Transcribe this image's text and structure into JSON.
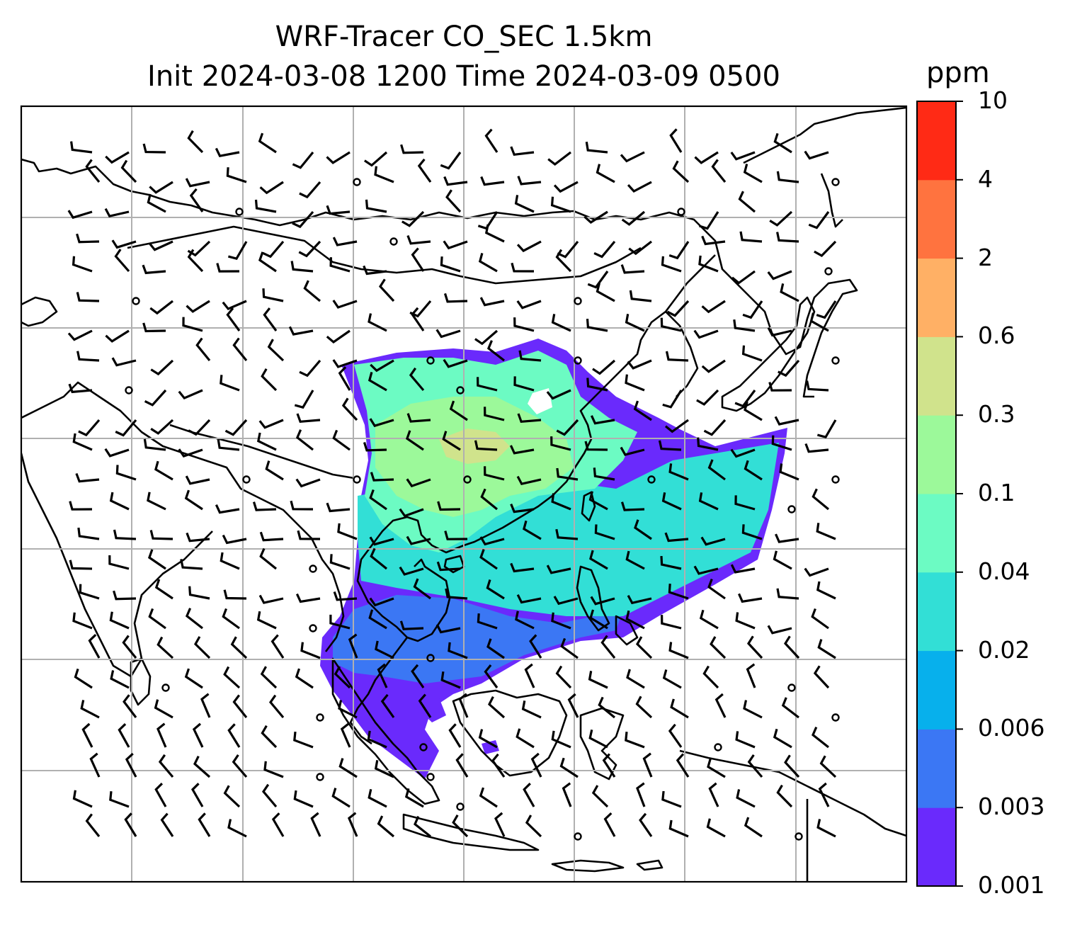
{
  "title": {
    "line1": "WRF-Tracer CO_SEC 1.5km",
    "line2": "Init 2024-03-08 1200 Time 2024-03-09 0500"
  },
  "colorbar": {
    "unit": "ppm",
    "levels": [
      "0.001",
      "0.003",
      "0.006",
      "0.02",
      "0.04",
      "0.1",
      "0.3",
      "0.6",
      "2",
      "4",
      "10"
    ],
    "colors": [
      "#6a2afc",
      "#3b77f4",
      "#07b0ec",
      "#32dfd6",
      "#6cfbc3",
      "#9cf99a",
      "#d0e38c",
      "#ffb065",
      "#ff733f",
      "#ff2a15"
    ]
  },
  "map": {
    "gridlines": true,
    "coastline_color": "#000000",
    "grid_color": "#b0b0b0",
    "overlay": "wind barbs"
  }
}
